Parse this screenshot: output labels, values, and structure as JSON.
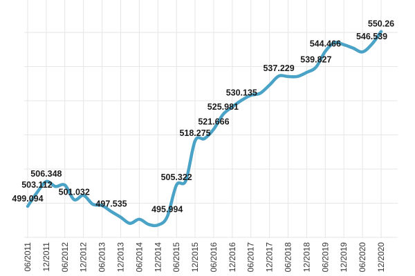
{
  "chart_data": {
    "type": "line",
    "title": "",
    "xlabel": "",
    "ylabel": "",
    "ylim": [
      490,
      550
    ],
    "grid": true,
    "line_color": "#4aa3c7",
    "x_ticks": [
      "06/2011",
      "12/2011",
      "06/2012",
      "12/2012",
      "06/2013",
      "12/2013",
      "06/2014",
      "12/2014",
      "06/2015",
      "12/2015",
      "06/2016",
      "12/2016",
      "06/2017",
      "12/2017",
      "06/2018",
      "12/2018",
      "06/2019",
      "12/2019",
      "06/2020",
      "12/2020"
    ],
    "x": [
      "06/2011",
      "09/2011",
      "12/2011",
      "03/2012",
      "06/2012",
      "09/2012",
      "12/2012",
      "03/2013",
      "06/2013",
      "09/2013",
      "12/2013",
      "03/2014",
      "06/2014",
      "09/2014",
      "12/2014",
      "03/2015",
      "06/2015",
      "09/2015",
      "12/2015",
      "03/2016",
      "06/2016",
      "09/2016",
      "12/2016",
      "03/2017",
      "06/2017",
      "09/2017",
      "12/2017",
      "03/2018",
      "06/2018",
      "09/2018",
      "12/2018",
      "03/2019",
      "06/2019",
      "09/2019",
      "12/2019",
      "03/2020",
      "06/2020",
      "09/2020",
      "12/2020"
    ],
    "values": [
      499.094,
      503.112,
      506.348,
      504.9,
      505.3,
      501.032,
      502.3,
      499.7,
      499.3,
      497.535,
      495.9,
      494.1,
      495.3,
      493.8,
      493.6,
      495.994,
      505.322,
      506.6,
      518.275,
      518.9,
      521.666,
      525.981,
      528.2,
      530.135,
      531.6,
      532.2,
      534.6,
      537.229,
      537.1,
      537.1,
      538.3,
      539.827,
      544.466,
      547.0,
      546.4,
      545.4,
      544.3,
      546.539,
      550.26
    ],
    "data_labels": [
      {
        "index": 0,
        "text": "499.094"
      },
      {
        "index": 1,
        "text": "503.112"
      },
      {
        "index": 2,
        "text": "506.348"
      },
      {
        "index": 5,
        "text": "501.032"
      },
      {
        "index": 9,
        "text": "497.535"
      },
      {
        "index": 15,
        "text": "495.994"
      },
      {
        "index": 16,
        "text": "505.322"
      },
      {
        "index": 18,
        "text": "518.275"
      },
      {
        "index": 20,
        "text": "521.666"
      },
      {
        "index": 21,
        "text": "525.981"
      },
      {
        "index": 23,
        "text": "530.135"
      },
      {
        "index": 27,
        "text": "537.229"
      },
      {
        "index": 31,
        "text": "539.827"
      },
      {
        "index": 32,
        "text": "544.466"
      },
      {
        "index": 37,
        "text": "546.539"
      },
      {
        "index": 38,
        "text": "550.26"
      }
    ]
  }
}
